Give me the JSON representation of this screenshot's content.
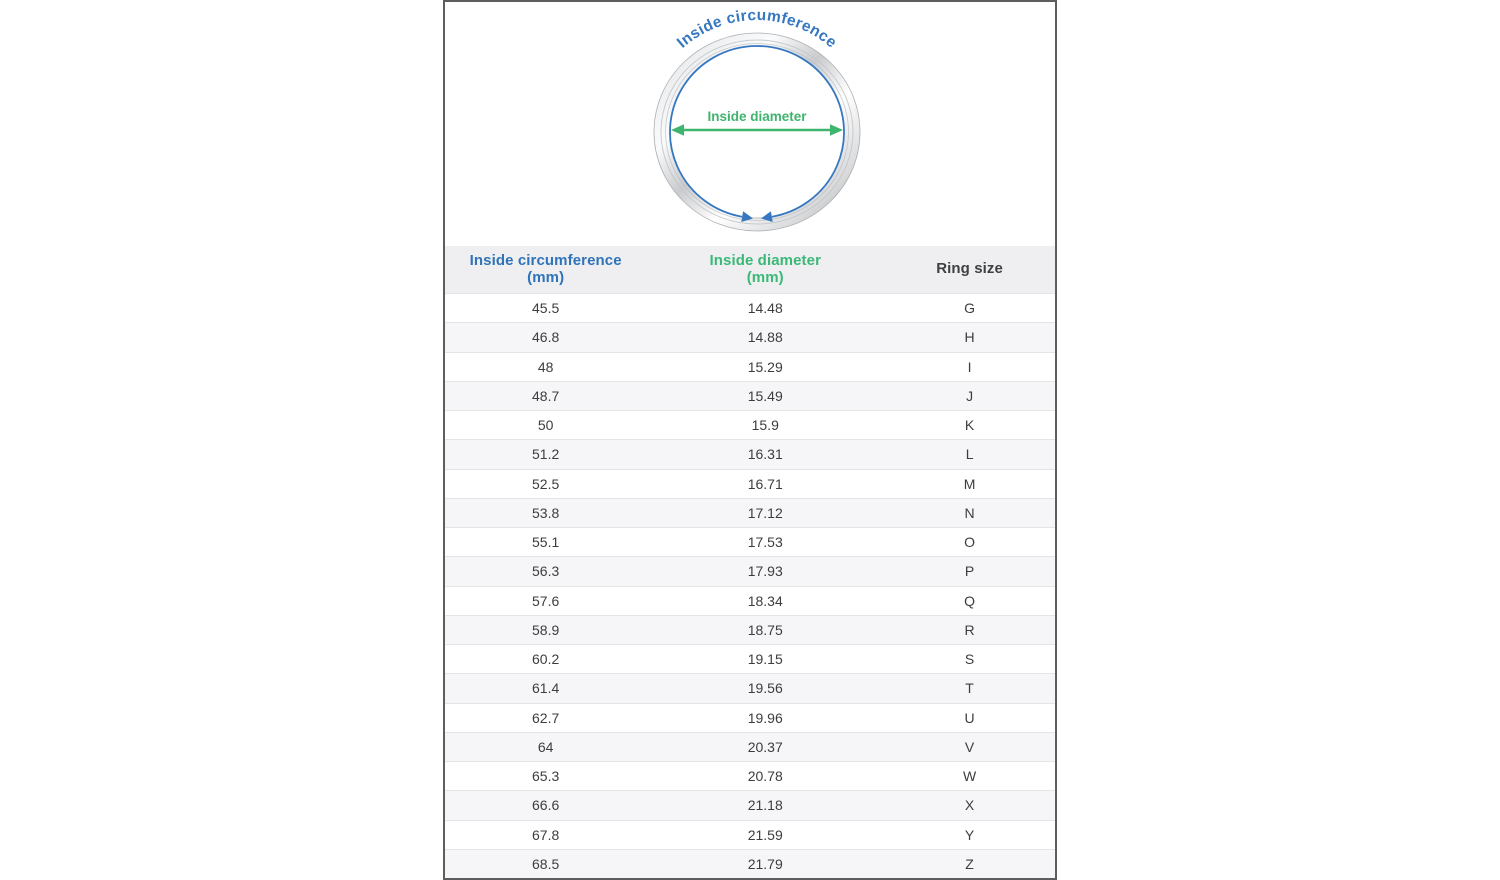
{
  "frame": {
    "border_color": "#5e5e5e",
    "background": "#ffffff"
  },
  "diagram": {
    "circumference_label": "Inside circumference",
    "diameter_label": "Inside diameter",
    "blue": "#3577c1",
    "green": "#3eb46e"
  },
  "table": {
    "header_bg": "#efeff1",
    "row_alt_bg": "#f6f6f8",
    "headers": [
      {
        "line1": "Inside circumference",
        "line2": "(mm)",
        "color": "#2f73b9"
      },
      {
        "line1": "Inside diameter",
        "line2": "(mm)",
        "color": "#3bb877"
      },
      {
        "line1": "Ring size",
        "color": "#3f4142"
      }
    ]
  },
  "chart_data": {
    "type": "table",
    "title": "",
    "columns": [
      "Inside circumference (mm)",
      "Inside diameter (mm)",
      "Ring size"
    ],
    "rows": [
      [
        45.5,
        14.48,
        "G"
      ],
      [
        46.8,
        14.88,
        "H"
      ],
      [
        48,
        15.29,
        "I"
      ],
      [
        48.7,
        15.49,
        "J"
      ],
      [
        50,
        15.9,
        "K"
      ],
      [
        51.2,
        16.31,
        "L"
      ],
      [
        52.5,
        16.71,
        "M"
      ],
      [
        53.8,
        17.12,
        "N"
      ],
      [
        55.1,
        17.53,
        "O"
      ],
      [
        56.3,
        17.93,
        "P"
      ],
      [
        57.6,
        18.34,
        "Q"
      ],
      [
        58.9,
        18.75,
        "R"
      ],
      [
        60.2,
        19.15,
        "S"
      ],
      [
        61.4,
        19.56,
        "T"
      ],
      [
        62.7,
        19.96,
        "U"
      ],
      [
        64,
        20.37,
        "V"
      ],
      [
        65.3,
        20.78,
        "W"
      ],
      [
        66.6,
        21.18,
        "X"
      ],
      [
        67.8,
        21.59,
        "Y"
      ],
      [
        68.5,
        21.79,
        "Z"
      ]
    ]
  }
}
